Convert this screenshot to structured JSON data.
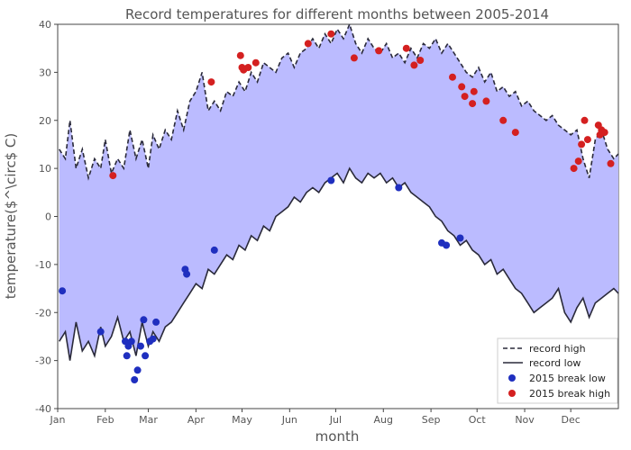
{
  "chart_data": {
    "type": "line",
    "title": "Record temperatures for different months between 2005-2014",
    "xlabel": "month",
    "ylabel": "temperature($^\\circ$ C)",
    "ylabel_display": "temperature($^\\circ$ C)",
    "xlim_day": [
      0,
      365
    ],
    "ylim": [
      -40,
      40
    ],
    "x_ticks": [
      "Jan",
      "Feb",
      "Mar",
      "Apr",
      "May",
      "Jun",
      "Jul",
      "Aug",
      "Sep",
      "Oct",
      "Nov",
      "Dec"
    ],
    "y_ticks": [
      -40,
      -30,
      -20,
      -10,
      0,
      10,
      20,
      30,
      40
    ],
    "fill_color": "#bbbbff",
    "line_color": "#2a2a3a",
    "low_point_color": "#1f2fbf",
    "high_point_color": "#d42020",
    "legend_position": "lower-right",
    "grid": false,
    "series": [
      {
        "name": "record high",
        "style": "dashed",
        "x": [
          1,
          5,
          8,
          12,
          16,
          20,
          24,
          28,
          31,
          35,
          39,
          43,
          47,
          51,
          55,
          59,
          62,
          66,
          70,
          74,
          78,
          82,
          86,
          90,
          94,
          98,
          102,
          106,
          110,
          114,
          118,
          122,
          126,
          130,
          134,
          138,
          142,
          146,
          150,
          154,
          158,
          162,
          166,
          170,
          174,
          178,
          182,
          186,
          190,
          194,
          198,
          202,
          206,
          210,
          214,
          218,
          222,
          226,
          230,
          234,
          238,
          242,
          246,
          250,
          254,
          258,
          262,
          266,
          270,
          274,
          278,
          282,
          286,
          290,
          294,
          298,
          302,
          306,
          310,
          314,
          318,
          322,
          326,
          330,
          334,
          338,
          342,
          346,
          350,
          354,
          358,
          362,
          365
        ],
        "y": [
          14,
          12,
          20,
          10,
          14,
          8,
          12,
          10,
          16,
          9,
          12,
          10,
          18,
          12,
          16,
          10,
          17,
          14,
          18,
          16,
          22,
          18,
          24,
          26,
          30,
          22,
          24,
          22,
          26,
          25,
          28,
          26,
          30,
          28,
          32,
          31,
          30,
          33,
          34,
          31,
          34,
          35,
          37,
          35,
          38,
          36,
          39,
          37,
          40,
          36,
          34,
          37,
          35,
          34,
          36,
          33,
          34,
          32,
          35,
          33,
          36,
          35,
          37,
          34,
          36,
          34,
          32,
          30,
          29,
          31,
          28,
          30,
          26,
          27,
          25,
          26,
          23,
          24,
          22,
          21,
          20,
          21,
          19,
          18,
          17,
          18,
          12,
          8,
          16,
          18,
          14,
          12,
          13
        ]
      },
      {
        "name": "record low",
        "style": "solid",
        "x": [
          1,
          5,
          8,
          12,
          16,
          20,
          24,
          28,
          31,
          35,
          39,
          43,
          47,
          51,
          55,
          59,
          62,
          66,
          70,
          74,
          78,
          82,
          86,
          90,
          94,
          98,
          102,
          106,
          110,
          114,
          118,
          122,
          126,
          130,
          134,
          138,
          142,
          146,
          150,
          154,
          158,
          162,
          166,
          170,
          174,
          178,
          182,
          186,
          190,
          194,
          198,
          202,
          206,
          210,
          214,
          218,
          222,
          226,
          230,
          234,
          238,
          242,
          246,
          250,
          254,
          258,
          262,
          266,
          270,
          274,
          278,
          282,
          286,
          290,
          294,
          298,
          302,
          306,
          310,
          314,
          318,
          322,
          326,
          330,
          334,
          338,
          342,
          346,
          350,
          354,
          358,
          362,
          365
        ],
        "y": [
          -26,
          -24,
          -30,
          -22,
          -28,
          -26,
          -29,
          -23,
          -27,
          -25,
          -21,
          -26,
          -24,
          -29,
          -22,
          -27,
          -24,
          -26,
          -23,
          -22,
          -20,
          -18,
          -16,
          -14,
          -15,
          -11,
          -12,
          -10,
          -8,
          -9,
          -6,
          -7,
          -4,
          -5,
          -2,
          -3,
          0,
          1,
          2,
          4,
          3,
          5,
          6,
          5,
          7,
          8,
          9,
          7,
          10,
          8,
          7,
          9,
          8,
          9,
          7,
          8,
          6,
          7,
          5,
          4,
          3,
          2,
          0,
          -1,
          -3,
          -4,
          -6,
          -5,
          -7,
          -8,
          -10,
          -9,
          -12,
          -11,
          -13,
          -15,
          -16,
          -18,
          -20,
          -19,
          -18,
          -17,
          -15,
          -20,
          -22,
          -19,
          -17,
          -21,
          -18,
          -17,
          -16,
          -15,
          -16
        ]
      },
      {
        "name": "2015 break low",
        "style": "scatter",
        "x": [
          3,
          28,
          44,
          45,
          46,
          48,
          50,
          52,
          54,
          56,
          57,
          60,
          62,
          64,
          83,
          84,
          102,
          178,
          222,
          250,
          253,
          262
        ],
        "y": [
          -15.5,
          -24,
          -26,
          -29,
          -27,
          -26,
          -34,
          -32,
          -27,
          -21.5,
          -29,
          -26,
          -25.5,
          -22,
          -11,
          -12,
          -7,
          7.5,
          6,
          -5.5,
          -6,
          -4.5
        ]
      },
      {
        "name": "2015 break high",
        "style": "scatter",
        "x": [
          36,
          100,
          119,
          120,
          121,
          124,
          129,
          163,
          178,
          193,
          209,
          227,
          232,
          236,
          257,
          263,
          265,
          270,
          271,
          279,
          290,
          298,
          336,
          339,
          341,
          343,
          345,
          352,
          353,
          354,
          356,
          360
        ],
        "y": [
          8.5,
          28,
          33.5,
          31,
          30.5,
          31,
          32,
          36,
          38,
          33,
          34.5,
          35,
          31.5,
          32.5,
          29,
          27,
          25,
          23.5,
          26,
          24,
          20,
          17.5,
          10,
          11.5,
          15,
          20,
          16,
          19,
          17,
          18,
          17.5,
          11
        ]
      }
    ]
  }
}
